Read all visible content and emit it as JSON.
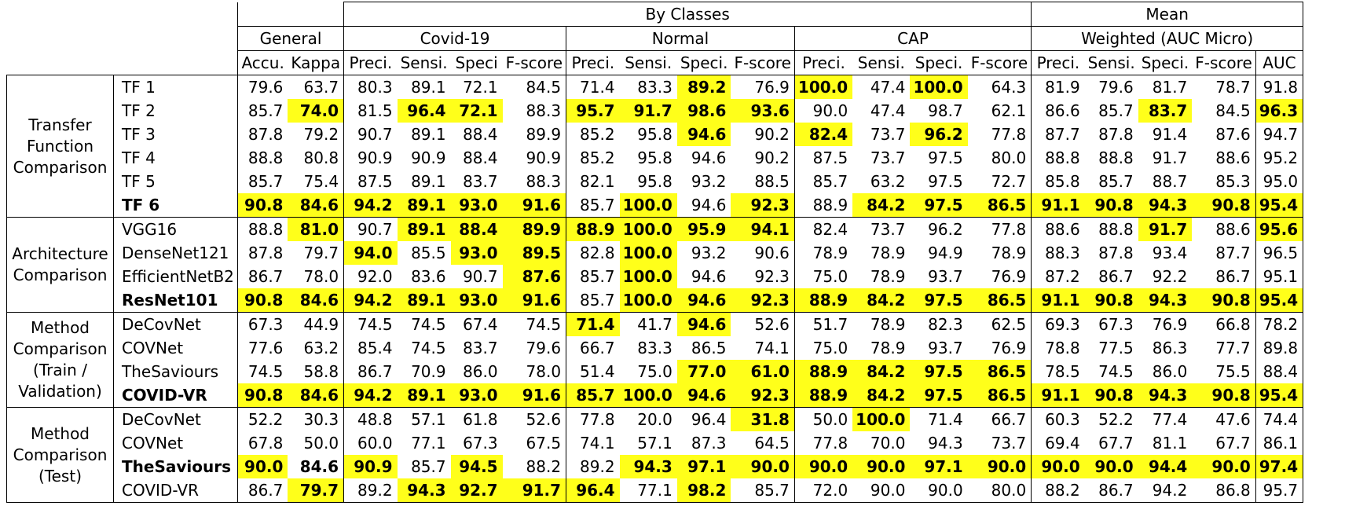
{
  "header": {
    "by_classes": "By Classes",
    "mean": "Mean",
    "general": "General",
    "covid": "Covid-19",
    "normal": "Normal",
    "cap": "CAP",
    "weighted": "Weighted (AUC Micro)",
    "cols": [
      "Accu.",
      "Kappa",
      "Preci.",
      "Sensi.",
      "Speci",
      "F-score",
      "Preci.",
      "Sensi.",
      "Speci.",
      "F-score",
      "Preci.",
      "Sensi.",
      "Speci.",
      "F-score",
      "Preci.",
      "Sensi.",
      "Speci.",
      "F-score",
      "AUC"
    ]
  },
  "groups": [
    {
      "label": "Transfer Function Comparison",
      "rows": [
        {
          "name": "TF 1",
          "bold": false,
          "values": [
            "79.6",
            "63.7",
            "80.3",
            "89.1",
            "72.1",
            "84.5",
            "71.4",
            "83.3",
            "89.2",
            "76.9",
            "100.0",
            "47.4",
            "100.0",
            "64.3",
            "81.9",
            "79.6",
            "81.7",
            "78.7",
            "91.8"
          ],
          "hl": [
            8,
            10,
            12
          ],
          "b": [
            8,
            10,
            12
          ]
        },
        {
          "name": "TF 2",
          "bold": false,
          "values": [
            "85.7",
            "74.0",
            "81.5",
            "96.4",
            "72.1",
            "88.3",
            "95.7",
            "91.7",
            "98.6",
            "93.6",
            "90.0",
            "47.4",
            "98.7",
            "62.1",
            "86.6",
            "85.7",
            "83.7",
            "84.5",
            "96.3"
          ],
          "hl": [
            1,
            3,
            4,
            6,
            7,
            8,
            9,
            16,
            18
          ],
          "b": [
            1,
            3,
            4,
            6,
            7,
            8,
            9,
            16,
            18
          ]
        },
        {
          "name": "TF 3",
          "bold": false,
          "values": [
            "87.8",
            "79.2",
            "90.7",
            "89.1",
            "88.4",
            "89.9",
            "85.2",
            "95.8",
            "94.6",
            "90.2",
            "82.4",
            "73.7",
            "96.2",
            "77.8",
            "87.7",
            "87.8",
            "91.4",
            "87.6",
            "94.7"
          ],
          "hl": [
            8,
            10,
            12
          ],
          "b": [
            8,
            10,
            12
          ]
        },
        {
          "name": "TF 4",
          "bold": false,
          "values": [
            "88.8",
            "80.8",
            "90.9",
            "90.9",
            "88.4",
            "90.9",
            "85.2",
            "95.8",
            "94.6",
            "90.2",
            "87.5",
            "73.7",
            "97.5",
            "80.0",
            "88.8",
            "88.8",
            "91.7",
            "88.6",
            "95.2"
          ],
          "hl": [],
          "b": []
        },
        {
          "name": "TF 5",
          "bold": false,
          "values": [
            "85.7",
            "75.4",
            "87.5",
            "89.1",
            "83.7",
            "88.3",
            "82.1",
            "95.8",
            "93.2",
            "88.5",
            "85.7",
            "63.2",
            "97.5",
            "72.7",
            "85.8",
            "85.7",
            "88.7",
            "85.3",
            "95.0"
          ],
          "hl": [],
          "b": []
        },
        {
          "name": "TF 6",
          "bold": true,
          "values": [
            "90.8",
            "84.6",
            "94.2",
            "89.1",
            "93.0",
            "91.6",
            "85.7",
            "100.0",
            "94.6",
            "92.3",
            "88.9",
            "84.2",
            "97.5",
            "86.5",
            "91.1",
            "90.8",
            "94.3",
            "90.8",
            "95.4"
          ],
          "hl": [
            0,
            1,
            2,
            3,
            4,
            5,
            7,
            9,
            11,
            12,
            13,
            14,
            15,
            16,
            17,
            18
          ],
          "b": [
            0,
            1,
            2,
            3,
            4,
            5,
            7,
            9,
            11,
            12,
            13,
            14,
            15,
            16,
            17,
            18
          ]
        }
      ]
    },
    {
      "label": "Architecture Comparison",
      "rows": [
        {
          "name": "VGG16",
          "bold": false,
          "values": [
            "88.8",
            "81.0",
            "90.7",
            "89.1",
            "88.4",
            "89.9",
            "88.9",
            "100.0",
            "95.9",
            "94.1",
            "82.4",
            "73.7",
            "96.2",
            "77.8",
            "88.6",
            "88.8",
            "91.7",
            "88.6",
            "95.6"
          ],
          "hl": [
            1,
            3,
            4,
            5,
            6,
            7,
            8,
            9,
            16,
            18
          ],
          "b": [
            1,
            3,
            4,
            5,
            6,
            7,
            8,
            9,
            16,
            18
          ]
        },
        {
          "name": "DenseNet121",
          "bold": false,
          "values": [
            "87.8",
            "79.7",
            "94.0",
            "85.5",
            "93.0",
            "89.5",
            "82.8",
            "100.0",
            "93.2",
            "90.6",
            "78.9",
            "78.9",
            "94.9",
            "78.9",
            "88.3",
            "87.8",
            "93.4",
            "87.7",
            "96.5"
          ],
          "hl": [
            2,
            4,
            5,
            7
          ],
          "b": [
            2,
            4,
            5,
            7
          ]
        },
        {
          "name": "EfficientNetB2",
          "bold": false,
          "values": [
            "86.7",
            "78.0",
            "92.0",
            "83.6",
            "90.7",
            "87.6",
            "85.7",
            "100.0",
            "94.6",
            "92.3",
            "75.0",
            "78.9",
            "93.7",
            "76.9",
            "87.2",
            "86.7",
            "92.2",
            "86.7",
            "95.1"
          ],
          "hl": [
            5,
            7
          ],
          "b": [
            5,
            7
          ]
        },
        {
          "name": "ResNet101",
          "bold": true,
          "values": [
            "90.8",
            "84.6",
            "94.2",
            "89.1",
            "93.0",
            "91.6",
            "85.7",
            "100.0",
            "94.6",
            "92.3",
            "88.9",
            "84.2",
            "97.5",
            "86.5",
            "91.1",
            "90.8",
            "94.3",
            "90.8",
            "95.4"
          ],
          "hl": [
            0,
            1,
            2,
            3,
            4,
            5,
            7,
            8,
            9,
            10,
            11,
            12,
            13,
            14,
            15,
            16,
            17,
            18
          ],
          "b": [
            0,
            1,
            2,
            3,
            4,
            5,
            7,
            8,
            9,
            10,
            11,
            12,
            13,
            14,
            15,
            16,
            17,
            18
          ]
        }
      ]
    },
    {
      "label": "Method Comparison (Train / Validation)",
      "rows": [
        {
          "name": "DeCovNet",
          "bold": false,
          "values": [
            "67.3",
            "44.9",
            "74.5",
            "74.5",
            "67.4",
            "74.5",
            "71.4",
            "41.7",
            "94.6",
            "52.6",
            "51.7",
            "78.9",
            "82.3",
            "62.5",
            "69.3",
            "67.3",
            "76.9",
            "66.8",
            "78.2"
          ],
          "hl": [
            6,
            8
          ],
          "b": [
            6,
            8
          ]
        },
        {
          "name": "COVNet",
          "bold": false,
          "values": [
            "77.6",
            "63.2",
            "85.4",
            "74.5",
            "83.7",
            "79.6",
            "66.7",
            "83.3",
            "86.5",
            "74.1",
            "75.0",
            "78.9",
            "93.7",
            "76.9",
            "78.8",
            "77.5",
            "86.3",
            "77.7",
            "89.8"
          ],
          "hl": [],
          "b": []
        },
        {
          "name": "TheSaviours",
          "bold": false,
          "values": [
            "74.5",
            "58.8",
            "86.7",
            "70.9",
            "86.0",
            "78.0",
            "51.4",
            "75.0",
            "77.0",
            "61.0",
            "88.9",
            "84.2",
            "97.5",
            "86.5",
            "78.5",
            "74.5",
            "86.0",
            "75.5",
            "88.4"
          ],
          "hl": [
            8,
            9,
            10,
            11,
            12,
            13
          ],
          "b": [
            8,
            9,
            10,
            11,
            12,
            13
          ]
        },
        {
          "name": "COVID-VR",
          "bold": true,
          "values": [
            "90.8",
            "84.6",
            "94.2",
            "89.1",
            "93.0",
            "91.6",
            "85.7",
            "100.0",
            "94.6",
            "92.3",
            "88.9",
            "84.2",
            "97.5",
            "86.5",
            "91.1",
            "90.8",
            "94.3",
            "90.8",
            "95.4"
          ],
          "hl": [
            0,
            1,
            2,
            3,
            4,
            5,
            6,
            7,
            8,
            9,
            10,
            11,
            12,
            13,
            14,
            15,
            16,
            17,
            18
          ],
          "b": [
            0,
            1,
            2,
            3,
            4,
            5,
            6,
            7,
            8,
            9,
            10,
            11,
            12,
            13,
            14,
            15,
            16,
            17,
            18
          ]
        }
      ]
    },
    {
      "label": "Method Comparison (Test)",
      "rows": [
        {
          "name": "DeCovNet",
          "bold": false,
          "values": [
            "52.2",
            "30.3",
            "48.8",
            "57.1",
            "61.8",
            "52.6",
            "77.8",
            "20.0",
            "96.4",
            "31.8",
            "50.0",
            "100.0",
            "71.4",
            "66.7",
            "60.3",
            "52.2",
            "77.4",
            "47.6",
            "74.4"
          ],
          "hl": [
            9,
            11
          ],
          "b": [
            9,
            11
          ]
        },
        {
          "name": "COVNet",
          "bold": false,
          "values": [
            "67.8",
            "50.0",
            "60.0",
            "77.1",
            "67.3",
            "67.5",
            "74.1",
            "57.1",
            "87.3",
            "64.5",
            "77.8",
            "70.0",
            "94.3",
            "73.7",
            "69.4",
            "67.7",
            "81.1",
            "67.7",
            "86.1"
          ],
          "hl": [],
          "b": []
        },
        {
          "name": "TheSaviours",
          "bold": true,
          "values": [
            "90.0",
            "84.6",
            "90.9",
            "85.7",
            "94.5",
            "88.2",
            "89.2",
            "94.3",
            "97.1",
            "90.0",
            "90.0",
            "90.0",
            "97.1",
            "90.0",
            "90.0",
            "90.0",
            "94.4",
            "90.0",
            "97.4"
          ],
          "hl": [
            0,
            2,
            4,
            7,
            8,
            9,
            10,
            11,
            12,
            13,
            14,
            15,
            16,
            17,
            18
          ],
          "b": [
            0,
            1,
            2,
            4,
            7,
            8,
            9,
            10,
            11,
            12,
            13,
            14,
            15,
            16,
            17,
            18
          ]
        },
        {
          "name": "COVID-VR",
          "bold": false,
          "values": [
            "86.7",
            "79.7",
            "89.2",
            "94.3",
            "92.7",
            "91.7",
            "96.4",
            "77.1",
            "98.2",
            "85.7",
            "72.0",
            "90.0",
            "90.0",
            "80.0",
            "88.2",
            "86.7",
            "94.2",
            "86.8",
            "95.7"
          ],
          "hl": [
            1,
            3,
            4,
            5,
            6,
            8
          ],
          "b": [
            1,
            3,
            4,
            5,
            6,
            8
          ]
        }
      ]
    }
  ],
  "colors": {
    "highlight": "#ffff1a",
    "rule": "#000000"
  }
}
